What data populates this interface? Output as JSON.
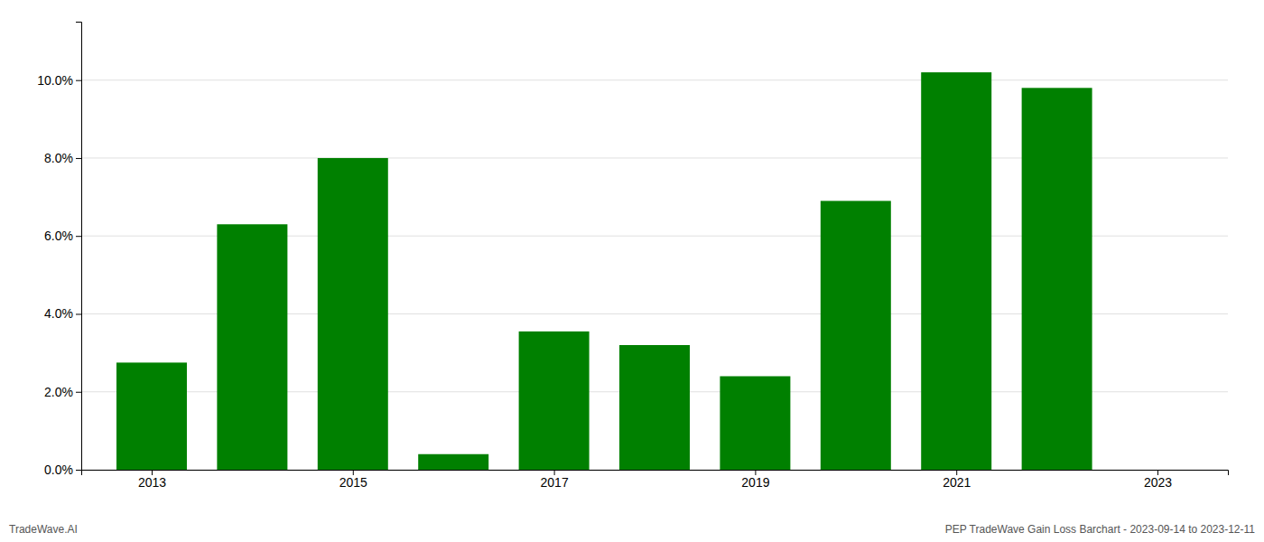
{
  "chart_data": {
    "type": "bar",
    "x": [
      2013,
      2014,
      2015,
      2016,
      2017,
      2018,
      2019,
      2020,
      2021,
      2022
    ],
    "values": [
      0.0275,
      0.063,
      0.08,
      0.004,
      0.0355,
      0.032,
      0.024,
      0.069,
      0.102,
      0.098
    ],
    "color": "#008000",
    "xlim": [
      2012.3,
      2023.7
    ],
    "xticks": [
      2013,
      2015,
      2017,
      2019,
      2021,
      2023
    ],
    "ylim": [
      0,
      0.115
    ],
    "yticks": [
      {
        "value": 0.0,
        "label": "0.0%"
      },
      {
        "value": 0.02,
        "label": "2.0%"
      },
      {
        "value": 0.04,
        "label": "4.0%"
      },
      {
        "value": 0.06,
        "label": "6.0%"
      },
      {
        "value": 0.08,
        "label": "8.0%"
      },
      {
        "value": 0.1,
        "label": "10.0%"
      }
    ],
    "grid": true,
    "annotations": [
      "TradeWave.AI",
      "PEP TradeWave Gain Loss Barchart - 2023-09-14 to 2023-12-11"
    ]
  }
}
